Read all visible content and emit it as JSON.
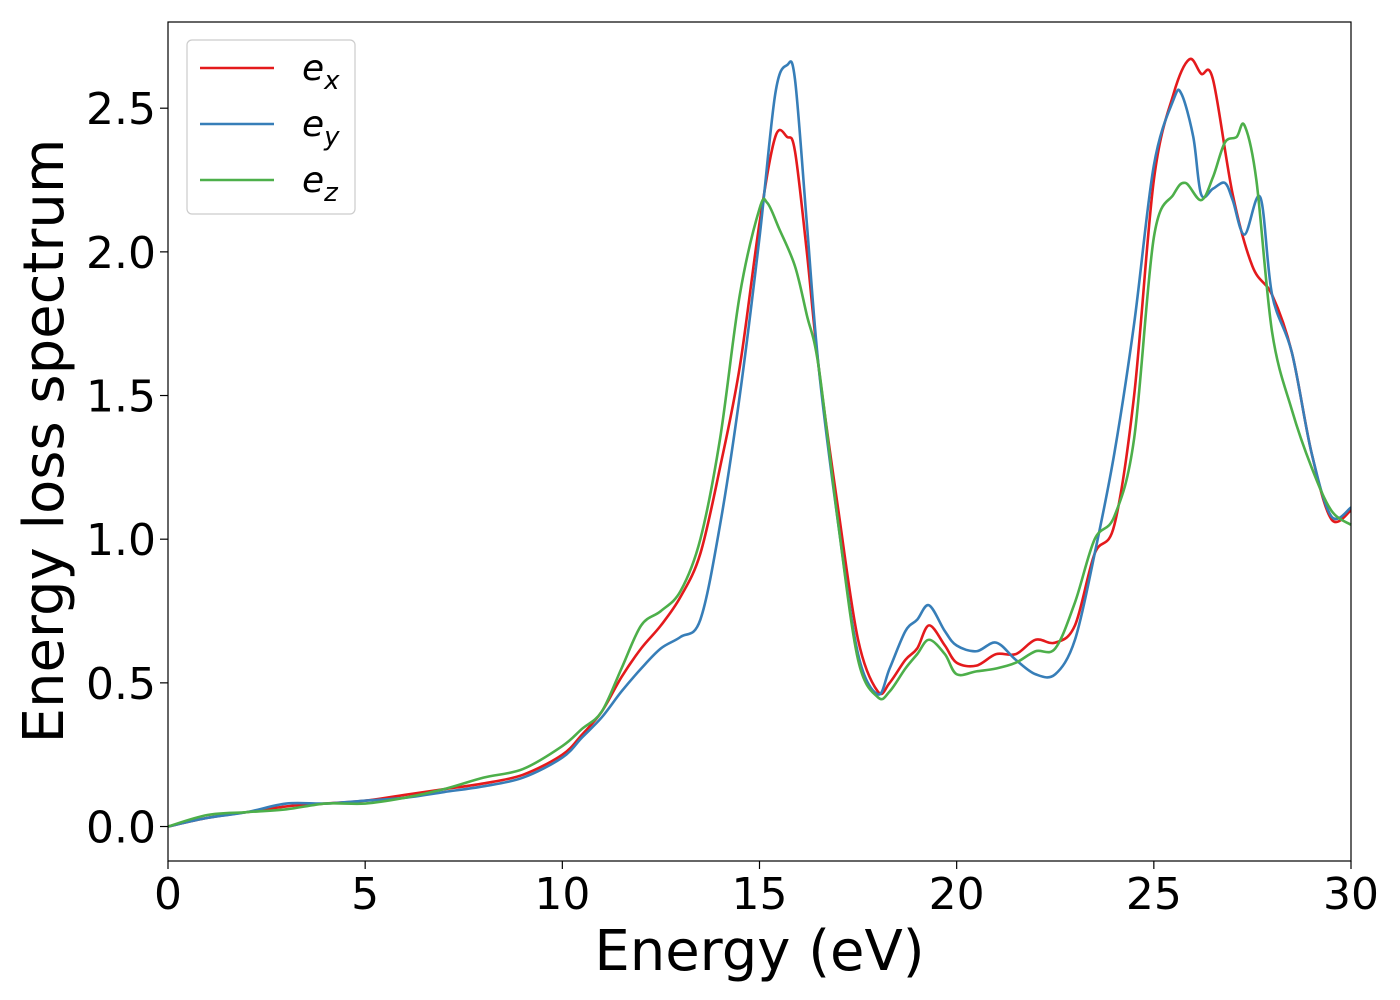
{
  "chart_data": {
    "type": "line",
    "xlabel": "Energy (eV)",
    "ylabel": "Energy loss spectrum",
    "xlim": [
      0,
      30
    ],
    "ylim": [
      -0.12,
      2.8
    ],
    "xticks": [
      "0",
      "5",
      "10",
      "15",
      "20",
      "25",
      "30"
    ],
    "yticks": [
      "0.0",
      "0.5",
      "1.0",
      "1.5",
      "2.0",
      "2.5"
    ],
    "grid": false,
    "legend_position": "top-left",
    "series": [
      {
        "name": "e",
        "subscript": "x",
        "color": "#e41a1c",
        "x": [
          0,
          1,
          2,
          3,
          4,
          5,
          6,
          7,
          8,
          9,
          10,
          10.5,
          11,
          11.5,
          12,
          12.5,
          13,
          13.5,
          14,
          14.5,
          15,
          15.4,
          15.7,
          15.9,
          16.2,
          16.5,
          17,
          17.5,
          18,
          18.3,
          18.7,
          19,
          19.3,
          19.7,
          20,
          20.5,
          21,
          21.5,
          22,
          22.5,
          23,
          23.5,
          24,
          24.5,
          25,
          25.5,
          25.9,
          26.2,
          26.5,
          27,
          27.5,
          28,
          28.5,
          29,
          29.5,
          30
        ],
        "y": [
          0,
          0.03,
          0.05,
          0.07,
          0.08,
          0.09,
          0.11,
          0.13,
          0.15,
          0.18,
          0.25,
          0.32,
          0.4,
          0.52,
          0.62,
          0.7,
          0.8,
          0.95,
          1.25,
          1.6,
          2.1,
          2.4,
          2.4,
          2.35,
          2.0,
          1.6,
          1.1,
          0.65,
          0.47,
          0.5,
          0.58,
          0.62,
          0.7,
          0.63,
          0.57,
          0.56,
          0.6,
          0.6,
          0.65,
          0.64,
          0.7,
          0.95,
          1.05,
          1.5,
          2.25,
          2.55,
          2.67,
          2.62,
          2.6,
          2.2,
          1.95,
          1.85,
          1.65,
          1.3,
          1.07,
          1.1
        ]
      },
      {
        "name": "e",
        "subscript": "y",
        "color": "#377eb8",
        "x": [
          0,
          1,
          2,
          3,
          4,
          5,
          6,
          7,
          8,
          9,
          10,
          10.5,
          11,
          11.5,
          12,
          12.5,
          13,
          13.5,
          14,
          14.5,
          15,
          15.4,
          15.7,
          15.9,
          16.2,
          16.5,
          17,
          17.5,
          18,
          18.3,
          18.7,
          19,
          19.3,
          19.7,
          20,
          20.5,
          21,
          21.5,
          22,
          22.5,
          23,
          23.5,
          24,
          24.5,
          25,
          25.5,
          25.7,
          26,
          26.2,
          26.5,
          26.8,
          27,
          27.3,
          27.7,
          28,
          28.5,
          29,
          29.5,
          30
        ],
        "y": [
          0,
          0.03,
          0.05,
          0.08,
          0.08,
          0.09,
          0.1,
          0.12,
          0.14,
          0.17,
          0.24,
          0.31,
          0.38,
          0.47,
          0.55,
          0.62,
          0.66,
          0.72,
          1.05,
          1.5,
          2.05,
          2.55,
          2.65,
          2.6,
          2.1,
          1.6,
          1.05,
          0.6,
          0.46,
          0.55,
          0.68,
          0.72,
          0.77,
          0.68,
          0.63,
          0.61,
          0.64,
          0.58,
          0.53,
          0.53,
          0.65,
          0.95,
          1.3,
          1.75,
          2.3,
          2.53,
          2.55,
          2.4,
          2.2,
          2.22,
          2.24,
          2.18,
          2.06,
          2.19,
          1.85,
          1.65,
          1.3,
          1.08,
          1.11
        ]
      },
      {
        "name": "e",
        "subscript": "z",
        "color": "#4daf4a",
        "x": [
          0,
          1,
          2,
          3,
          4,
          5,
          6,
          7,
          8,
          9,
          10,
          10.5,
          11,
          11.5,
          12,
          12.5,
          13,
          13.5,
          14,
          14.5,
          15,
          15.2,
          15.5,
          15.9,
          16.2,
          16.5,
          17,
          17.5,
          18,
          18.3,
          18.7,
          19,
          19.3,
          19.7,
          20,
          20.5,
          21,
          21.5,
          22,
          22.5,
          23,
          23.5,
          24,
          24.5,
          25,
          25.5,
          25.8,
          26.2,
          26.5,
          26.8,
          27.1,
          27.3,
          27.6,
          28,
          28.5,
          29,
          29.5,
          30
        ],
        "y": [
          0,
          0.04,
          0.05,
          0.06,
          0.08,
          0.08,
          0.1,
          0.13,
          0.17,
          0.2,
          0.28,
          0.34,
          0.4,
          0.55,
          0.7,
          0.75,
          0.82,
          1.0,
          1.35,
          1.85,
          2.15,
          2.17,
          2.08,
          1.95,
          1.78,
          1.6,
          1.05,
          0.58,
          0.45,
          0.47,
          0.55,
          0.6,
          0.65,
          0.6,
          0.53,
          0.54,
          0.55,
          0.57,
          0.61,
          0.62,
          0.78,
          1.0,
          1.08,
          1.35,
          2.05,
          2.2,
          2.24,
          2.18,
          2.26,
          2.38,
          2.4,
          2.44,
          2.25,
          1.72,
          1.45,
          1.25,
          1.1,
          1.05
        ]
      }
    ]
  }
}
